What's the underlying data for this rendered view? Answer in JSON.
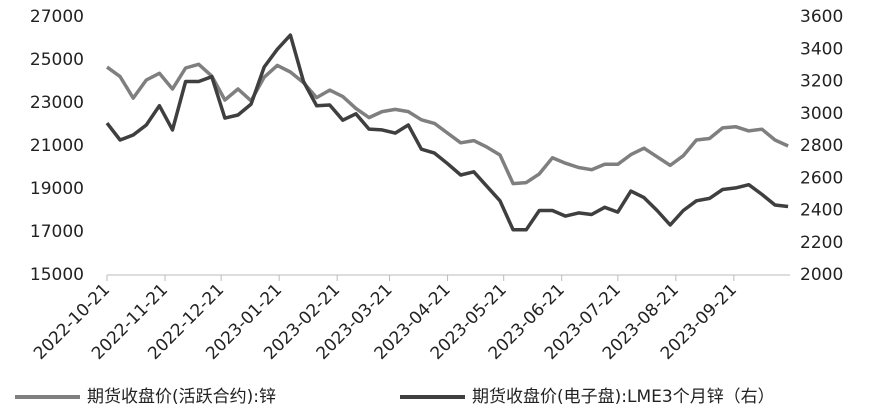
{
  "chart_data": {
    "type": "line",
    "x": [
      "2022-10-21",
      "2022-10-28",
      "2022-11-04",
      "2022-11-11",
      "2022-11-18",
      "2022-11-25",
      "2022-12-02",
      "2022-12-09",
      "2022-12-16",
      "2022-12-23",
      "2022-12-30",
      "2023-01-06",
      "2023-01-13",
      "2023-01-20",
      "2023-01-27",
      "2023-02-03",
      "2023-02-10",
      "2023-02-17",
      "2023-02-24",
      "2023-03-03",
      "2023-03-10",
      "2023-03-17",
      "2023-03-24",
      "2023-03-31",
      "2023-04-07",
      "2023-04-14",
      "2023-04-21",
      "2023-04-28",
      "2023-05-05",
      "2023-05-12",
      "2023-05-19",
      "2023-05-26",
      "2023-06-02",
      "2023-06-09",
      "2023-06-16",
      "2023-06-23",
      "2023-06-30",
      "2023-07-07",
      "2023-07-14",
      "2023-07-21",
      "2023-07-28",
      "2023-08-04",
      "2023-08-11",
      "2023-08-18",
      "2023-08-25",
      "2023-09-01",
      "2023-09-08",
      "2023-09-15",
      "2023-09-22",
      "2023-09-29",
      "2023-10-06",
      "2023-10-13",
      "2023-10-20"
    ],
    "series": [
      {
        "name": "期货收盘价(活跃合约):锌",
        "color": "#7f7f7f",
        "axis": "y",
        "values": [
          24670,
          24230,
          23230,
          24070,
          24380,
          23650,
          24630,
          24800,
          24250,
          23140,
          23650,
          23100,
          24200,
          24750,
          24440,
          23950,
          23250,
          23600,
          23300,
          22750,
          22320,
          22600,
          22700,
          22600,
          22220,
          22050,
          21600,
          21150,
          21250,
          20950,
          20580,
          19250,
          19300,
          19700,
          20450,
          20200,
          20000,
          19900,
          20150,
          20150,
          20600,
          20900,
          20500,
          20100,
          20550,
          21280,
          21350,
          21840,
          21900,
          21700,
          21780,
          21280,
          21000
        ]
      },
      {
        "name": "期货收盘价(电子盘):LME3个月锌（右）",
        "color": "#3f3f3f",
        "axis": "y2",
        "values": [
          2942,
          2837,
          2868,
          2930,
          3050,
          2900,
          3200,
          3200,
          3230,
          2973,
          2992,
          3060,
          3290,
          3400,
          3488,
          3200,
          3050,
          3054,
          2960,
          3000,
          2905,
          2900,
          2880,
          2930,
          2780,
          2756,
          2690,
          2620,
          2640,
          2550,
          2460,
          2280,
          2280,
          2400,
          2400,
          2365,
          2385,
          2375,
          2420,
          2390,
          2520,
          2480,
          2400,
          2310,
          2400,
          2460,
          2475,
          2530,
          2540,
          2560,
          2500,
          2434,
          2425
        ]
      }
    ],
    "xlim": [
      "2022-10-21",
      "2023-10-21"
    ],
    "xticks": [
      "2022-10-21",
      "2022-11-21",
      "2022-12-21",
      "2023-01-21",
      "2023-02-21",
      "2023-03-21",
      "2023-04-21",
      "2023-05-21",
      "2023-06-21",
      "2023-07-21",
      "2023-08-21",
      "2023-09-21"
    ],
    "ylim": [
      15000,
      27000
    ],
    "yticks": [
      15000,
      17000,
      19000,
      21000,
      23000,
      25000,
      27000
    ],
    "y2lim": [
      2000,
      3600
    ],
    "y2ticks": [
      2000,
      2200,
      2400,
      2600,
      2800,
      3000,
      3200,
      3400,
      3600
    ],
    "legend": "bottom"
  }
}
